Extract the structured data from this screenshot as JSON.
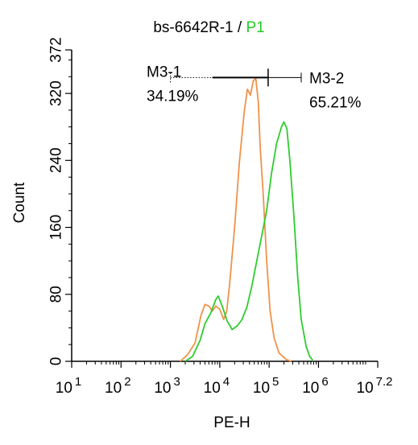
{
  "chart_data": {
    "type": "line",
    "title": {
      "sample": "bs-6642R-1",
      "separator": " / ",
      "gate": "P1",
      "gate_color": "#22cc22"
    },
    "xlabel": "PE-H",
    "ylabel": "Count",
    "x_scale": "log",
    "xlim_log10": [
      1,
      7.2
    ],
    "ylim": [
      0,
      372
    ],
    "x_ticks": [
      {
        "base": "10",
        "exp": "1",
        "log10": 1
      },
      {
        "base": "10",
        "exp": "2",
        "log10": 2
      },
      {
        "base": "10",
        "exp": "3",
        "log10": 3
      },
      {
        "base": "10",
        "exp": "4",
        "log10": 4
      },
      {
        "base": "10",
        "exp": "5",
        "log10": 5
      },
      {
        "base": "10",
        "exp": "6",
        "log10": 6
      },
      {
        "base": "10",
        "exp": "7.2",
        "log10": 7.2
      }
    ],
    "y_ticks": [
      0,
      80,
      160,
      240,
      320,
      372
    ],
    "series": [
      {
        "color": "#f0924a",
        "points": [
          [
            3.2,
            0
          ],
          [
            3.35,
            8
          ],
          [
            3.5,
            22
          ],
          [
            3.62,
            55
          ],
          [
            3.7,
            68
          ],
          [
            3.78,
            66
          ],
          [
            3.85,
            60
          ],
          [
            3.92,
            66
          ],
          [
            4.0,
            62
          ],
          [
            4.08,
            50
          ],
          [
            4.14,
            60
          ],
          [
            4.2,
            92
          ],
          [
            4.3,
            160
          ],
          [
            4.4,
            240
          ],
          [
            4.5,
            300
          ],
          [
            4.56,
            325
          ],
          [
            4.62,
            318
          ],
          [
            4.68,
            335
          ],
          [
            4.73,
            338
          ],
          [
            4.78,
            310
          ],
          [
            4.82,
            255
          ],
          [
            4.88,
            200
          ],
          [
            4.95,
            120
          ],
          [
            5.02,
            60
          ],
          [
            5.1,
            28
          ],
          [
            5.2,
            10
          ],
          [
            5.35,
            2
          ],
          [
            5.45,
            0
          ]
        ]
      },
      {
        "color": "#2ecc2e",
        "points": [
          [
            3.3,
            0
          ],
          [
            3.45,
            6
          ],
          [
            3.6,
            25
          ],
          [
            3.7,
            45
          ],
          [
            3.82,
            58
          ],
          [
            3.92,
            74
          ],
          [
            3.97,
            78
          ],
          [
            4.05,
            66
          ],
          [
            4.15,
            48
          ],
          [
            4.25,
            38
          ],
          [
            4.35,
            42
          ],
          [
            4.45,
            50
          ],
          [
            4.55,
            65
          ],
          [
            4.65,
            90
          ],
          [
            4.75,
            120
          ],
          [
            4.85,
            150
          ],
          [
            4.95,
            180
          ],
          [
            5.05,
            225
          ],
          [
            5.15,
            260
          ],
          [
            5.25,
            280
          ],
          [
            5.3,
            286
          ],
          [
            5.36,
            278
          ],
          [
            5.42,
            240
          ],
          [
            5.5,
            175
          ],
          [
            5.58,
            100
          ],
          [
            5.65,
            50
          ],
          [
            5.75,
            18
          ],
          [
            5.82,
            6
          ],
          [
            5.9,
            0
          ]
        ]
      }
    ],
    "annotations": {
      "marker_log10": 4.98,
      "left_gate": {
        "label": "M3-1",
        "percent": "34.19%",
        "from_log10": 3.0,
        "to_log10": 4.98
      },
      "right_gate": {
        "label": "M3-2",
        "percent": "65.21%",
        "from_log10": 4.98,
        "to_log10": 5.65
      },
      "bar_y": 339
    }
  }
}
